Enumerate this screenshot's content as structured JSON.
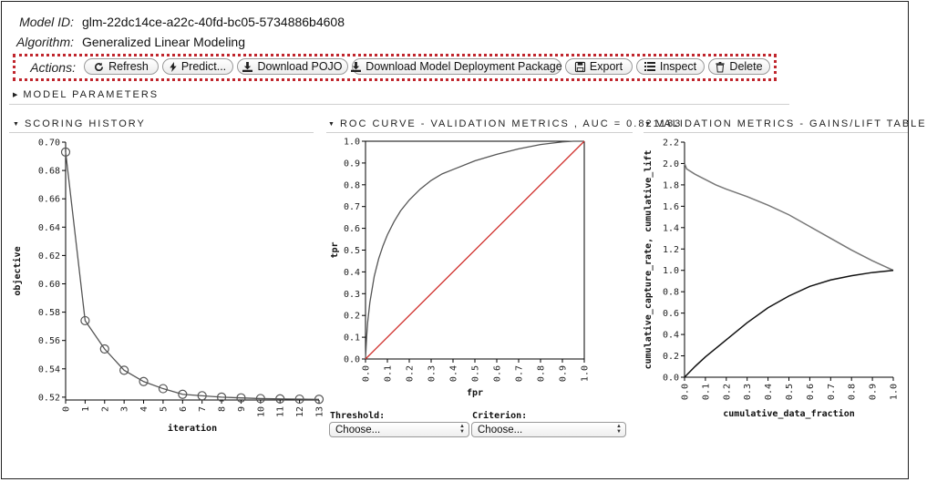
{
  "model": {
    "id_label": "Model ID:",
    "id_value": "glm-22dc14ce-a22c-40fd-bc05-5734886b4608",
    "algo_label": "Algorithm:",
    "algo_value": "Generalized Linear Modeling"
  },
  "actions": {
    "label": "Actions:",
    "buttons": [
      {
        "label": "Refresh",
        "icon": "refresh-icon"
      },
      {
        "label": "Predict...",
        "icon": "bolt-icon"
      },
      {
        "label": "Download POJO",
        "icon": "download-icon"
      },
      {
        "label": "Download Model Deployment Package",
        "icon": "download-icon"
      },
      {
        "label": "Export",
        "icon": "save-icon"
      },
      {
        "label": "Inspect",
        "icon": "list-icon"
      },
      {
        "label": "Delete",
        "icon": "trash-icon"
      }
    ]
  },
  "sections": {
    "model_parameters": "MODEL PARAMETERS",
    "scoring_history": "SCORING HISTORY",
    "roc_curve": "ROC CURVE - VALIDATION METRICS , AUC = 0.821183",
    "gains_lift": "VALIDATION METRICS - GAINS/LIFT TABLE"
  },
  "controls": {
    "threshold_label": "Threshold:",
    "threshold_value": "Choose...",
    "criterion_label": "Criterion:",
    "criterion_value": "Choose..."
  },
  "chart_data": [
    {
      "type": "line",
      "title": "SCORING HISTORY",
      "xlabel": "iteration",
      "ylabel": "objective",
      "x": [
        0,
        1,
        2,
        3,
        4,
        5,
        6,
        7,
        8,
        9,
        10,
        11,
        12,
        13
      ],
      "series": [
        {
          "values": [
            0.693,
            0.574,
            0.554,
            0.539,
            0.531,
            0.526,
            0.522,
            0.521,
            0.52,
            0.5195,
            0.519,
            0.5188,
            0.5186,
            0.5185
          ]
        }
      ],
      "markers": true,
      "xlim": [
        0,
        13
      ],
      "ylim": [
        0.518,
        0.7
      ],
      "yticks": [
        0.52,
        0.54,
        0.56,
        0.58,
        0.6,
        0.62,
        0.64,
        0.66,
        0.68,
        0.7
      ],
      "ytick_labels": [
        "0.52",
        "0.54",
        "0.56",
        "0.58",
        "0.60",
        "0.62",
        "0.64",
        "0.66",
        "0.68",
        "0.70"
      ],
      "xtick_labels": [
        "0",
        "1",
        "2",
        "3",
        "4",
        "5",
        "6",
        "7",
        "8",
        "9",
        "10",
        "11",
        "12",
        "13"
      ],
      "color": "#555555"
    },
    {
      "type": "line",
      "title": "ROC CURVE - VALIDATION METRICS , AUC = 0.821183",
      "xlabel": "fpr",
      "ylabel": "tpr",
      "xlim": [
        0,
        1
      ],
      "ylim": [
        0,
        1
      ],
      "ticks": [
        0,
        0.1,
        0.2,
        0.3,
        0.4,
        0.5,
        0.6,
        0.7,
        0.8,
        0.9,
        1.0
      ],
      "tick_labels": [
        "0.0",
        "0.1",
        "0.2",
        "0.3",
        "0.4",
        "0.5",
        "0.6",
        "0.7",
        "0.8",
        "0.9",
        "1.0"
      ],
      "series": [
        {
          "x": [
            0,
            0.005,
            0.01,
            0.02,
            0.04,
            0.06,
            0.08,
            0.1,
            0.13,
            0.16,
            0.2,
            0.25,
            0.3,
            0.35,
            0.4,
            0.5,
            0.6,
            0.7,
            0.8,
            0.9,
            0.95,
            1.0
          ],
          "y": [
            0,
            0.1,
            0.17,
            0.26,
            0.38,
            0.46,
            0.52,
            0.57,
            0.63,
            0.68,
            0.73,
            0.78,
            0.82,
            0.85,
            0.87,
            0.91,
            0.94,
            0.965,
            0.985,
            0.997,
            1.0,
            1.0
          ],
          "color": "#555555"
        },
        {
          "x": [
            0,
            1
          ],
          "y": [
            0,
            1
          ],
          "color": "#d0312d"
        }
      ]
    },
    {
      "type": "line",
      "title": "VALIDATION METRICS - GAINS/LIFT TABLE",
      "xlabel": "cumulative_data_fraction",
      "ylabel": "cumulative_capture_rate, cumulative_lift",
      "xlim": [
        0,
        1
      ],
      "ylim": [
        0,
        2.2
      ],
      "xticks": [
        0,
        0.1,
        0.2,
        0.3,
        0.4,
        0.5,
        0.6,
        0.7,
        0.8,
        0.9,
        1.0
      ],
      "xtick_labels": [
        "0.0",
        "0.1",
        "0.2",
        "0.3",
        "0.4",
        "0.5",
        "0.6",
        "0.7",
        "0.8",
        "0.9",
        "1.0"
      ],
      "yticks": [
        0,
        0.2,
        0.4,
        0.6,
        0.8,
        1.0,
        1.2,
        1.4,
        1.6,
        1.8,
        2.0,
        2.2
      ],
      "ytick_labels": [
        "0.0",
        "0.2",
        "0.4",
        "0.6",
        "0.8",
        "1.0",
        "1.2",
        "1.4",
        "1.6",
        "1.8",
        "2.0",
        "2.2"
      ],
      "series": [
        {
          "name": "cumulative_lift",
          "x": [
            0,
            0.01,
            0.05,
            0.1,
            0.15,
            0.2,
            0.3,
            0.4,
            0.5,
            0.6,
            0.7,
            0.8,
            0.9,
            1.0
          ],
          "y": [
            2.0,
            1.95,
            1.9,
            1.85,
            1.8,
            1.76,
            1.69,
            1.61,
            1.52,
            1.41,
            1.3,
            1.19,
            1.09,
            1.0
          ],
          "color": "#777777"
        },
        {
          "name": "cumulative_capture_rate",
          "x": [
            0,
            0.05,
            0.1,
            0.15,
            0.2,
            0.3,
            0.4,
            0.5,
            0.6,
            0.7,
            0.8,
            0.9,
            1.0
          ],
          "y": [
            0.0,
            0.1,
            0.19,
            0.27,
            0.35,
            0.51,
            0.65,
            0.76,
            0.85,
            0.91,
            0.95,
            0.98,
            1.0
          ],
          "color": "#111111"
        }
      ]
    }
  ]
}
